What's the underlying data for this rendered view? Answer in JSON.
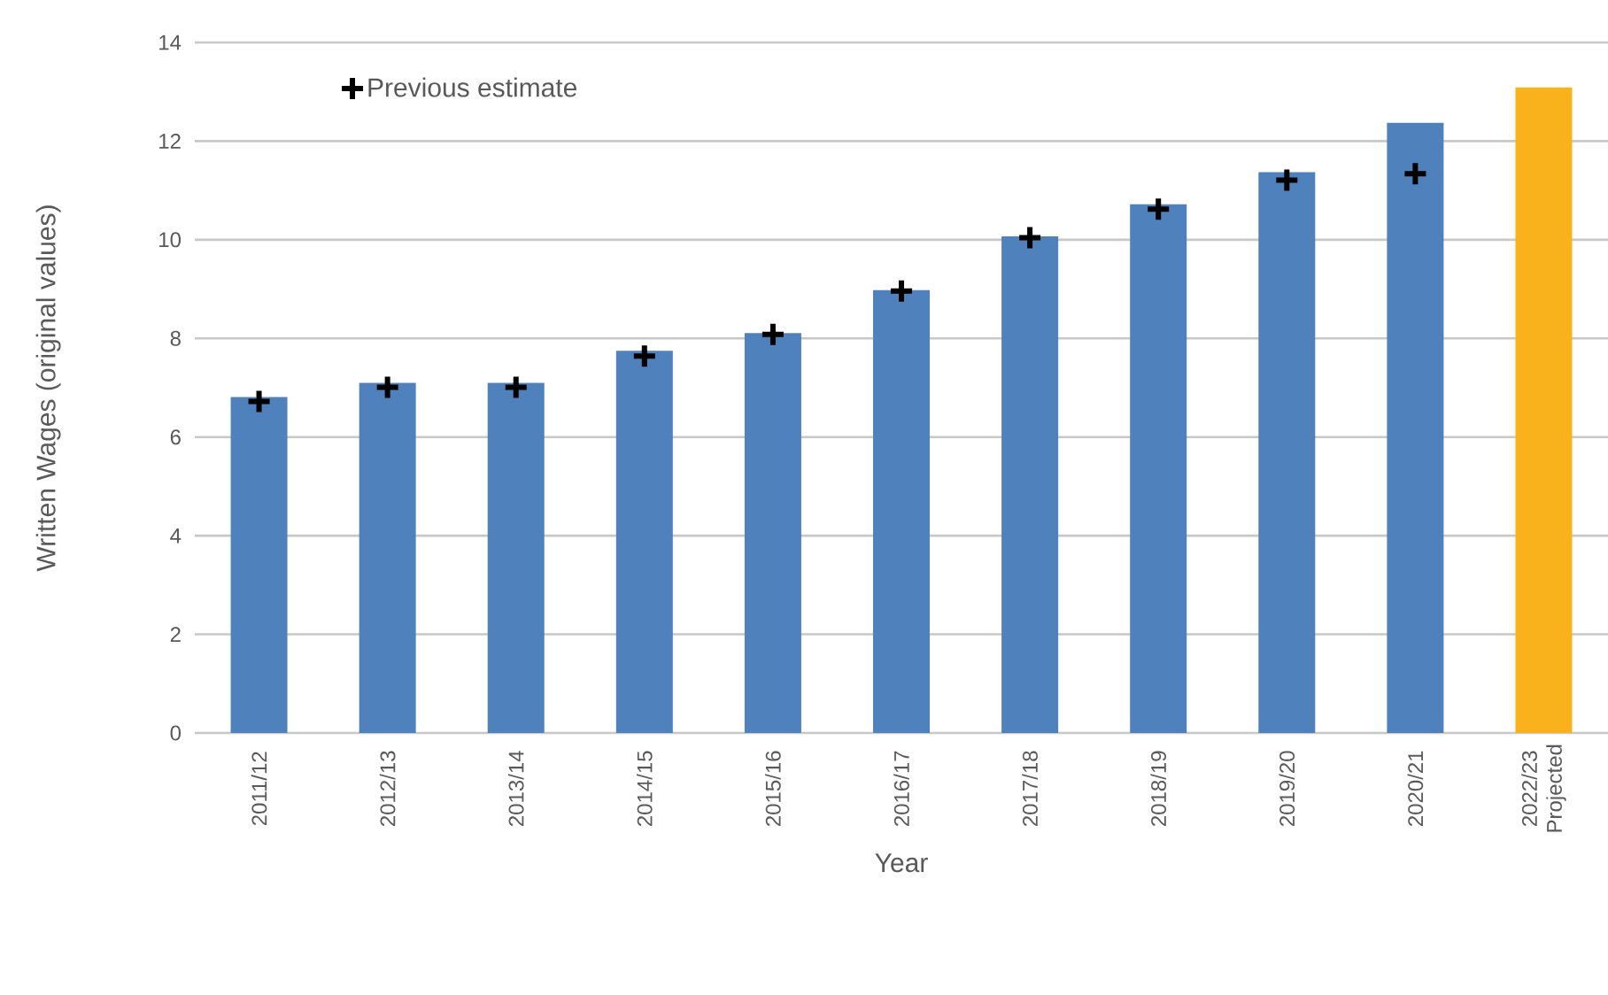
{
  "chart_data": {
    "type": "bar",
    "xlabel": "Year",
    "ylabel": "Written Wages (original values)",
    "categories": [
      "2011/12",
      "2012/13",
      "2013/14",
      "2014/15",
      "2015/16",
      "2016/17",
      "2017/18",
      "2018/19",
      "2019/20",
      "2020/21",
      "2022/23 Projected"
    ],
    "series": [
      {
        "values": [
          6.81,
          7.1,
          7.1,
          7.75,
          8.11,
          8.98,
          10.07,
          10.72,
          11.37,
          12.37,
          13.09
        ],
        "colors": [
          "#4f81bd",
          "#4f81bd",
          "#4f81bd",
          "#4f81bd",
          "#4f81bd",
          "#4f81bd",
          "#4f81bd",
          "#4f81bd",
          "#4f81bd",
          "#4f81bd",
          "#f9b21b"
        ]
      },
      {
        "type": "scatter",
        "name": "Previous estimate",
        "color": "#000000",
        "marker": "cross",
        "values": [
          6.72,
          7.01,
          7.01,
          7.64,
          8.08,
          8.96,
          10.04,
          10.62,
          11.21,
          11.34,
          null
        ]
      }
    ],
    "ylim": [
      0,
      14
    ],
    "yticks": [
      0,
      2,
      4,
      6,
      8,
      10,
      12,
      14
    ],
    "grid": "y",
    "legend": "top left"
  }
}
